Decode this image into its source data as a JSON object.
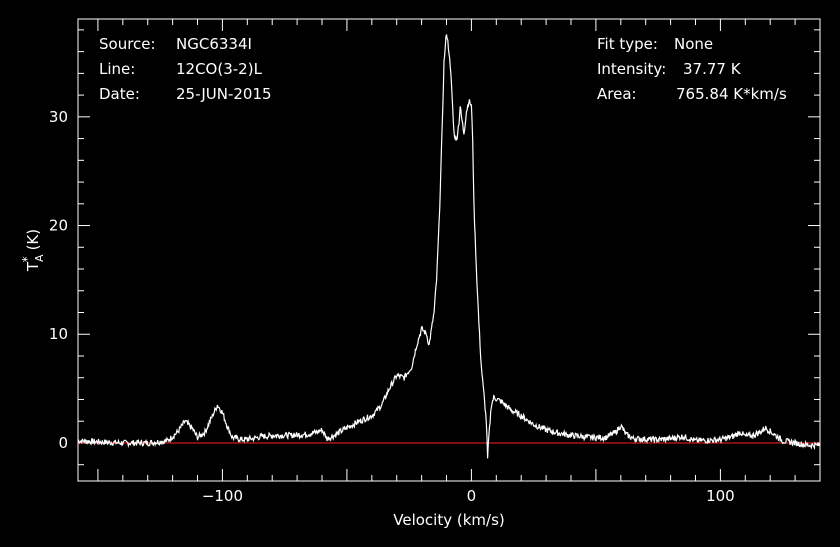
{
  "header": {
    "source_label": "Source:",
    "source_value": "NGC6334I",
    "line_label": "Line:",
    "line_value": "12CO(3-2)L",
    "date_label": "Date:",
    "date_value": "25-JUN-2015",
    "fit_label": "Fit type:",
    "fit_value": "None",
    "intensity_label": "Intensity:",
    "intensity_value": "37.77 K",
    "area_label": "Area:",
    "area_value": "765.84 K*km/s"
  },
  "chart_data": {
    "type": "line",
    "xlabel": "Velocity (km/s)",
    "ylabel_main": "T",
    "ylabel_sub": "A",
    "ylabel_sup": "*",
    "ylabel_unit": "(K)",
    "xlim": [
      -158,
      140
    ],
    "ylim": [
      -3.5,
      39
    ],
    "xticks_major": [
      -100,
      0,
      100
    ],
    "xtick_labels": [
      "−100",
      "0",
      "100"
    ],
    "yticks_major": [
      0,
      10,
      20,
      30
    ],
    "ytick_labels": [
      "0",
      "10",
      "20",
      "30"
    ],
    "grid": false,
    "colors": {
      "background": "#000000",
      "axes": "#ffffff",
      "series": "#ffffff",
      "baseline": "#ff2020"
    },
    "baseline_y": 0,
    "series": [
      {
        "values_xy": [
          [
            -158,
            0.2
          ],
          [
            -150,
            0.1
          ],
          [
            -140,
            0.0
          ],
          [
            -130,
            0.0
          ],
          [
            -122,
            0.2
          ],
          [
            -118,
            1.0
          ],
          [
            -115,
            2.0
          ],
          [
            -112,
            1.3
          ],
          [
            -110,
            0.5
          ],
          [
            -107,
            1.0
          ],
          [
            -104,
            2.5
          ],
          [
            -102,
            3.5
          ],
          [
            -100,
            2.8
          ],
          [
            -98,
            1.5
          ],
          [
            -96,
            0.5
          ],
          [
            -92,
            0.3
          ],
          [
            -88,
            0.4
          ],
          [
            -84,
            0.6
          ],
          [
            -78,
            0.7
          ],
          [
            -72,
            0.7
          ],
          [
            -66,
            0.8
          ],
          [
            -62,
            1.0
          ],
          [
            -60,
            1.2
          ],
          [
            -58,
            0.4
          ],
          [
            -55,
            0.7
          ],
          [
            -50,
            1.4
          ],
          [
            -45,
            2.0
          ],
          [
            -40,
            2.5
          ],
          [
            -36,
            3.5
          ],
          [
            -33,
            5.0
          ],
          [
            -30,
            6.2
          ],
          [
            -27,
            6.0
          ],
          [
            -24,
            7.0
          ],
          [
            -22,
            9.0
          ],
          [
            -20,
            10.5
          ],
          [
            -18,
            10.0
          ],
          [
            -17,
            9.0
          ],
          [
            -15,
            12.0
          ],
          [
            -14,
            15.0
          ],
          [
            -13,
            20.0
          ],
          [
            -12,
            27.0
          ],
          [
            -11,
            35.0
          ],
          [
            -10,
            37.8
          ],
          [
            -9,
            36.0
          ],
          [
            -8,
            33.0
          ],
          [
            -7,
            28.5
          ],
          [
            -6,
            27.8
          ],
          [
            -5,
            29.5
          ],
          [
            -4.5,
            31.0
          ],
          [
            -4,
            30.0
          ],
          [
            -3,
            28.5
          ],
          [
            -2,
            30.5
          ],
          [
            -1,
            31.5
          ],
          [
            0,
            31.0
          ],
          [
            0.5,
            28.0
          ],
          [
            1,
            22.0
          ],
          [
            2,
            16.0
          ],
          [
            3,
            11.0
          ],
          [
            4,
            7.0
          ],
          [
            5,
            4.5
          ],
          [
            6,
            2.0
          ],
          [
            6.5,
            -1.5
          ],
          [
            7,
            0.5
          ],
          [
            7.5,
            2.0
          ],
          [
            8,
            3.5
          ],
          [
            9,
            4.2
          ],
          [
            12,
            3.8
          ],
          [
            16,
            3.0
          ],
          [
            20,
            2.5
          ],
          [
            25,
            1.7
          ],
          [
            30,
            1.2
          ],
          [
            35,
            0.9
          ],
          [
            40,
            0.7
          ],
          [
            48,
            0.5
          ],
          [
            54,
            0.5
          ],
          [
            58,
            1.0
          ],
          [
            60,
            1.6
          ],
          [
            62,
            0.8
          ],
          [
            65,
            0.4
          ],
          [
            75,
            0.3
          ],
          [
            80,
            0.4
          ],
          [
            85,
            0.6
          ],
          [
            90,
            0.2
          ],
          [
            100,
            0.3
          ],
          [
            105,
            0.6
          ],
          [
            108,
            1.0
          ],
          [
            110,
            0.6
          ],
          [
            113,
            0.7
          ],
          [
            116,
            1.0
          ],
          [
            118,
            1.4
          ],
          [
            121,
            0.9
          ],
          [
            125,
            0.2
          ],
          [
            130,
            0.0
          ],
          [
            135,
            -0.2
          ],
          [
            140,
            -0.2
          ]
        ]
      }
    ]
  }
}
